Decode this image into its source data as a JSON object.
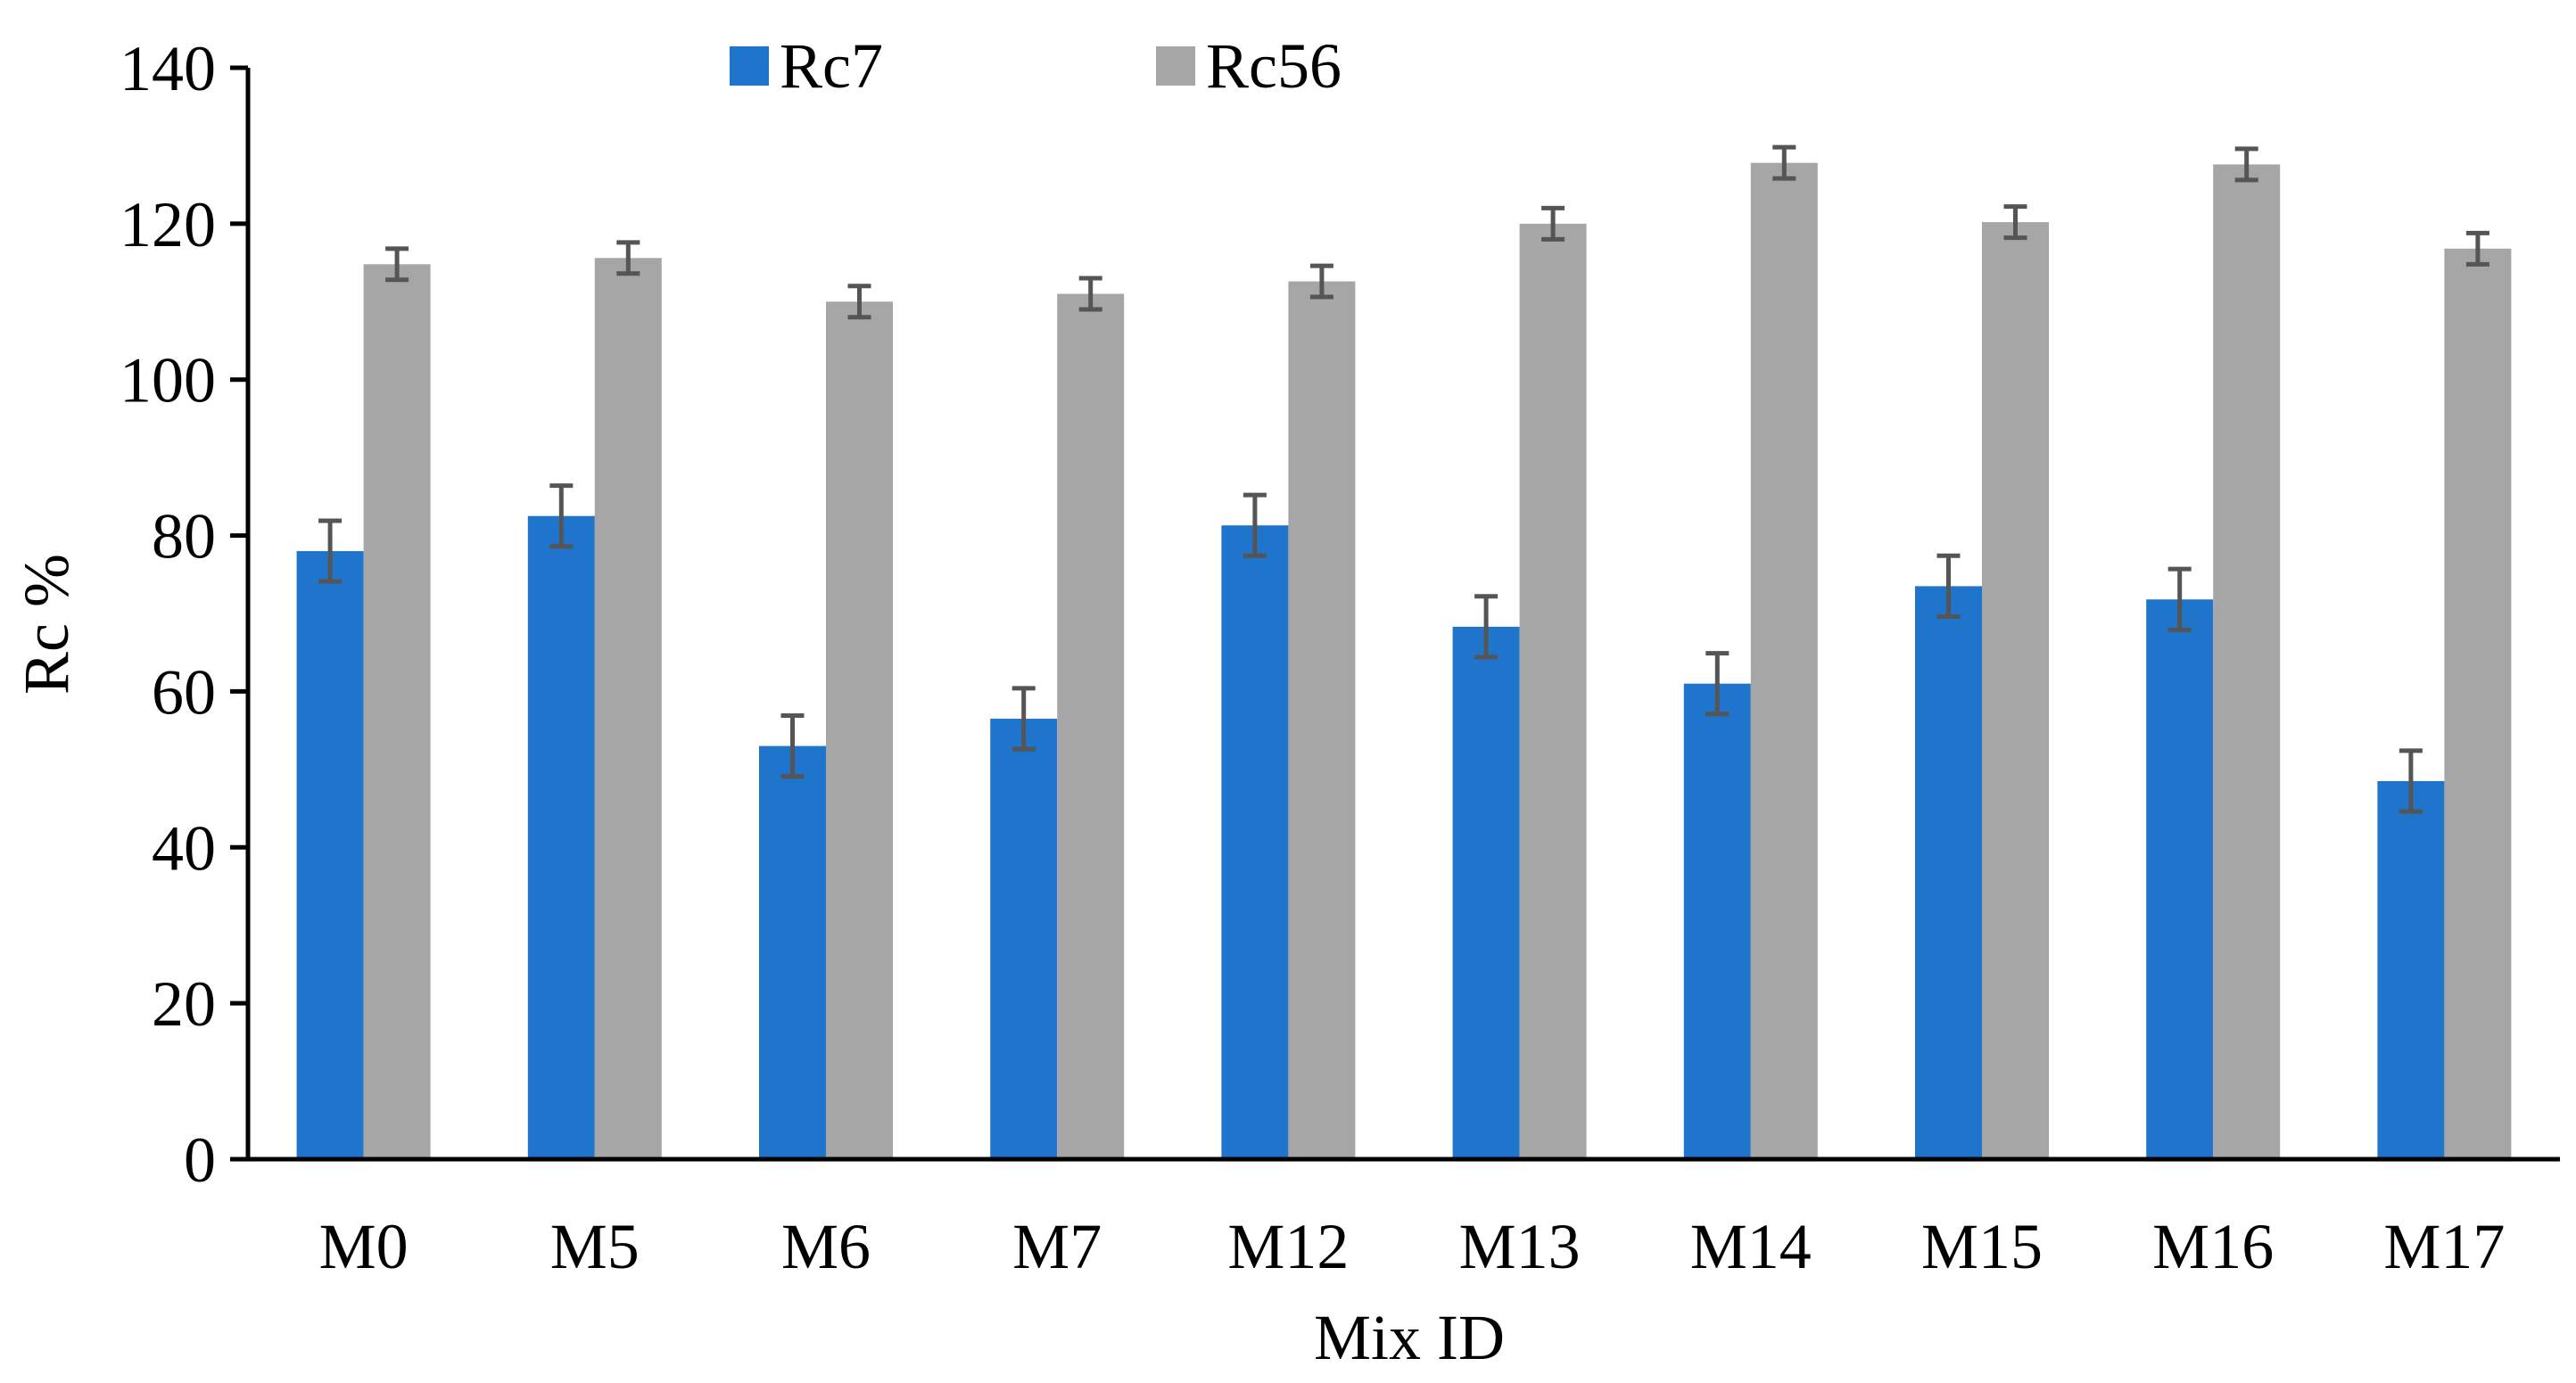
{
  "chart_data": {
    "type": "bar",
    "title": "",
    "xlabel": "Mix ID",
    "ylabel": "Rc %",
    "ylim": [
      0,
      140
    ],
    "yticks": [
      0,
      20,
      40,
      60,
      80,
      100,
      120,
      140
    ],
    "categories": [
      "M0",
      "M5",
      "M6",
      "M7",
      "M12",
      "M13",
      "M14",
      "M15",
      "M16",
      "M17"
    ],
    "series": [
      {
        "name": "Rc7",
        "color": "#1F74CC",
        "values": [
          78,
          82.5,
          53,
          56.5,
          81.3,
          68.3,
          61,
          73.5,
          71.8,
          48.5
        ],
        "error": [
          3.9,
          3.9,
          3.9,
          3.9,
          3.9,
          3.9,
          3.9,
          3.9,
          3.9,
          3.9
        ]
      },
      {
        "name": "Rc56",
        "color": "#A6A6A6",
        "values": [
          114.8,
          115.6,
          110,
          111,
          112.6,
          120,
          127.8,
          120.2,
          127.6,
          116.8
        ],
        "error": [
          2,
          2,
          2,
          2,
          2,
          2,
          2,
          2,
          2,
          2
        ]
      }
    ],
    "error_bar_color": "#555555",
    "legend": "top"
  }
}
